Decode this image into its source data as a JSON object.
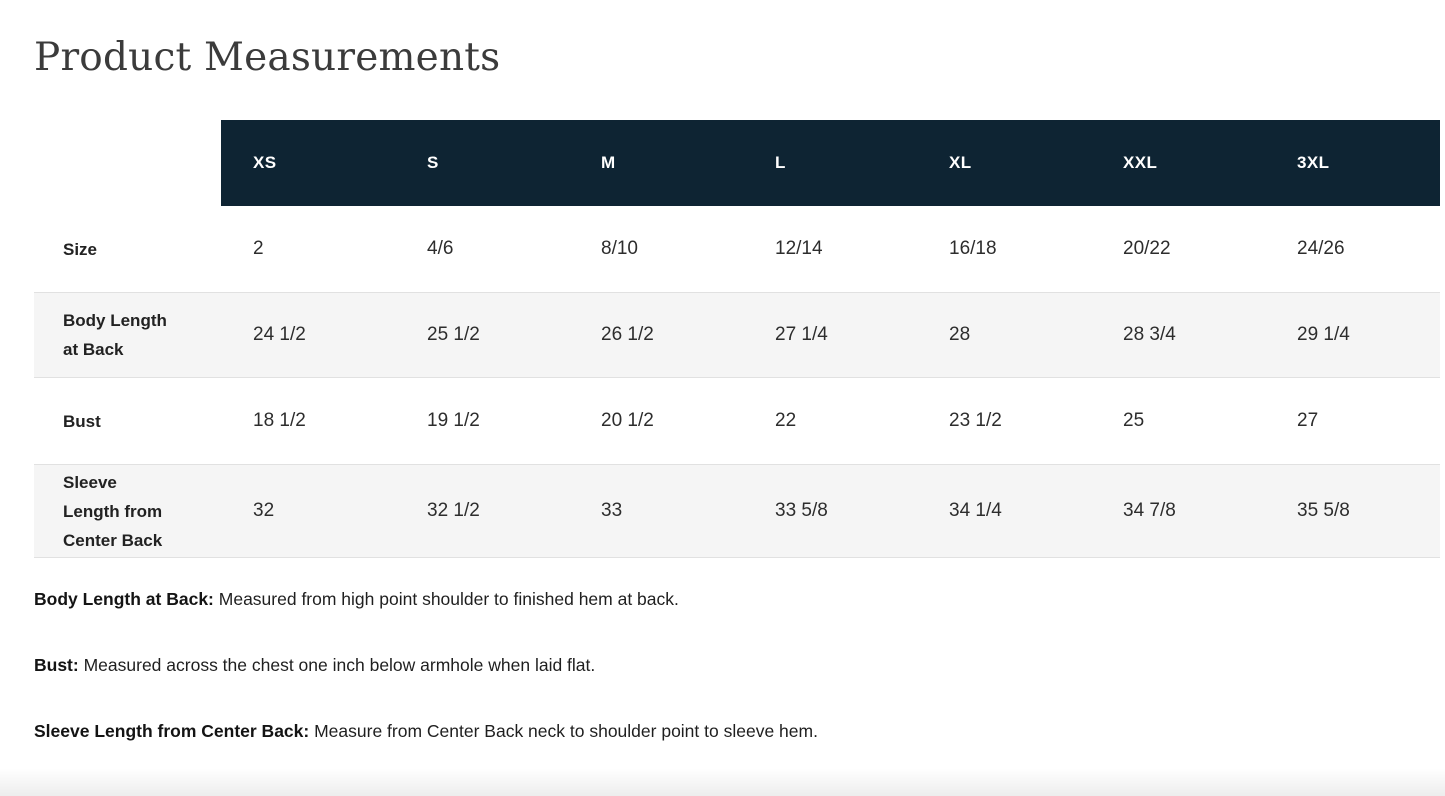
{
  "page": {
    "title": "Product Measurements"
  },
  "table": {
    "columns": [
      "XS",
      "S",
      "M",
      "L",
      "XL",
      "XXL",
      "3XL"
    ],
    "rows": [
      {
        "label": "Size",
        "values": [
          "2",
          "4/6",
          "8/10",
          "12/14",
          "16/18",
          "20/22",
          "24/26"
        ]
      },
      {
        "label": "Body Length at Back",
        "values": [
          "24 1/2",
          "25 1/2",
          "26 1/2",
          "27 1/4",
          "28",
          "28 3/4",
          "29 1/4"
        ]
      },
      {
        "label": "Bust",
        "values": [
          "18 1/2",
          "19 1/2",
          "20 1/2",
          "22",
          "23 1/2",
          "25",
          "27"
        ]
      },
      {
        "label": "Sleeve Length from Center Back",
        "values": [
          "32",
          "32 1/2",
          "33",
          "33 5/8",
          "34 1/4",
          "34 7/8",
          "35 5/8"
        ]
      }
    ]
  },
  "notes": [
    {
      "term": "Body Length at Back:",
      "definition": "Measured from high point shoulder to finished hem at back."
    },
    {
      "term": "Bust:",
      "definition": "Measured across the chest one inch below armhole when laid flat."
    },
    {
      "term": "Sleeve Length from Center Back:",
      "definition": "Measure from Center Back neck to shoulder point to sleeve hem."
    }
  ],
  "colors": {
    "header_bg": "#0e2433",
    "header_text": "#ffffff",
    "alt_row_bg": "#f5f5f5",
    "border": "#e1e1e1",
    "title_text": "#3b3b3b"
  }
}
